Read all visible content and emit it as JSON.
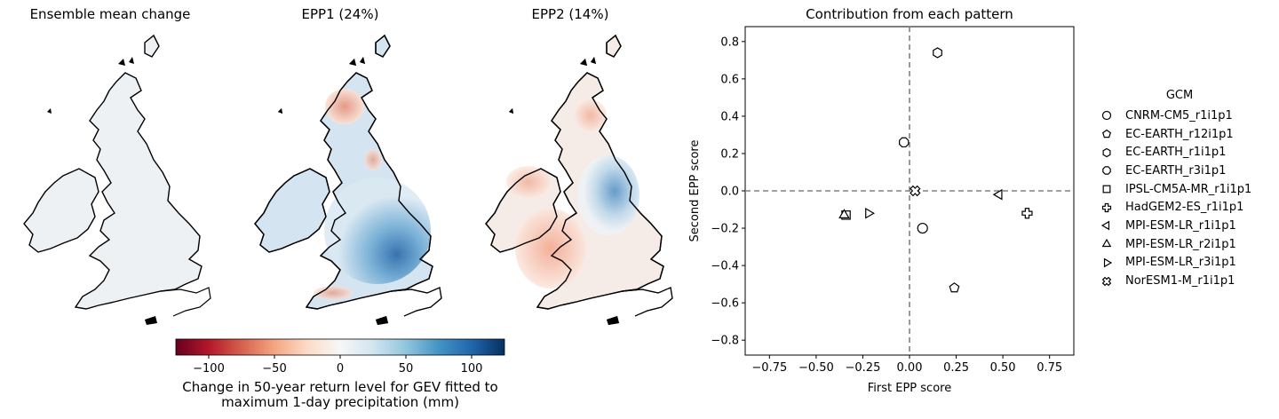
{
  "maps": [
    {
      "title": "Ensemble mean change"
    },
    {
      "title": "EPP1 (24%)"
    },
    {
      "title": "EPP2 (14%)"
    }
  ],
  "colorbar": {
    "label_line1": "Change in 50-year return level for GEV fitted to",
    "label_line2": "maximum 1-day precipitation (mm)",
    "ticks": [
      "−100",
      "−50",
      "0",
      "50",
      "100"
    ],
    "tick_values": [
      -100,
      -50,
      0,
      50,
      100
    ],
    "vmin": -125,
    "vmax": 125,
    "colormap": "RdBu"
  },
  "legend": {
    "title": "GCM"
  },
  "colors": {
    "axis": "#000000",
    "dashed": "#808080",
    "marker_face": "#ffffff",
    "marker_edge": "#000000"
  },
  "chart_data": {
    "type": "scatter",
    "title": "Contribution from each pattern",
    "xlabel": "First EPP score",
    "ylabel": "Second EPP score",
    "xlim": [
      -0.88,
      0.88
    ],
    "ylim": [
      -0.88,
      0.88
    ],
    "xticks": [
      -0.75,
      -0.5,
      -0.25,
      0.0,
      0.25,
      0.5,
      0.75
    ],
    "xtick_labels": [
      "−0.75",
      "−0.50",
      "−0.25",
      "0.00",
      "0.25",
      "0.50",
      "0.75"
    ],
    "yticks": [
      -0.8,
      -0.6,
      -0.4,
      -0.2,
      0.0,
      0.2,
      0.4,
      0.6,
      0.8
    ],
    "ytick_labels": [
      "−0.8",
      "−0.6",
      "−0.4",
      "−0.2",
      "0.0",
      "0.2",
      "0.4",
      "0.6",
      "0.8"
    ],
    "reference_lines": {
      "x": 0,
      "y": 0,
      "style": "dashed"
    },
    "grid": false,
    "legend_position": "right",
    "series": [
      {
        "name": "CNRM-CM5_r1i1p1",
        "marker": "circle",
        "x": 0.07,
        "y": -0.2
      },
      {
        "name": "EC-EARTH_r12i1p1",
        "marker": "pentagon",
        "x": 0.24,
        "y": -0.52
      },
      {
        "name": "EC-EARTH_r1i1p1",
        "marker": "hexagon",
        "x": 0.15,
        "y": 0.74
      },
      {
        "name": "EC-EARTH_r3i1p1",
        "marker": "octagon",
        "x": -0.03,
        "y": 0.26
      },
      {
        "name": "IPSL-CM5A-MR_r1i1p1",
        "marker": "square",
        "x": -0.34,
        "y": -0.13
      },
      {
        "name": "HadGEM2-ES_r1i1p1",
        "marker": "plus",
        "x": 0.63,
        "y": -0.12
      },
      {
        "name": "MPI-ESM-LR_r1i1p1",
        "marker": "triangle-left",
        "x": 0.48,
        "y": -0.02
      },
      {
        "name": "MPI-ESM-LR_r2i1p1",
        "marker": "triangle-up",
        "x": -0.35,
        "y": -0.13
      },
      {
        "name": "MPI-ESM-LR_r3i1p1",
        "marker": "triangle-right",
        "x": -0.22,
        "y": -0.12
      },
      {
        "name": "NorESM1-M_r1i1p1",
        "marker": "x-filled",
        "x": 0.03,
        "y": 0.0
      }
    ]
  }
}
